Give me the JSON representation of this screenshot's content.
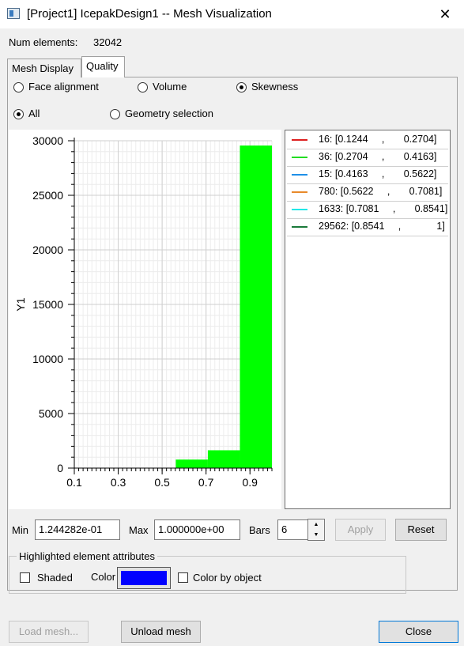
{
  "window": {
    "title": "[Project1] IcepakDesign1 -- Mesh Visualization",
    "close_glyph": "✕"
  },
  "summary": {
    "num_elements_label": "Num elements:",
    "num_elements_value": "32042"
  },
  "tabs": [
    {
      "label": "Mesh Display",
      "active": false
    },
    {
      "label": "Quality",
      "active": true
    }
  ],
  "quality": {
    "metric_options": [
      {
        "label": "Face alignment",
        "checked": false
      },
      {
        "label": "Volume",
        "checked": false
      },
      {
        "label": "Skewness",
        "checked": true
      }
    ],
    "scope_options": [
      {
        "label": "All",
        "checked": true
      },
      {
        "label": "Geometry selection",
        "checked": false
      }
    ]
  },
  "chart_data": {
    "type": "bar",
    "ylabel": "Y1",
    "xlabel": "",
    "x_ticks": [
      "0.1",
      "0.3",
      "0.5",
      "0.7",
      "0.9"
    ],
    "x_tick_values": [
      0.1,
      0.3,
      0.5,
      0.7,
      0.9
    ],
    "y_ticks": [
      "0",
      "5000",
      "10000",
      "15000",
      "20000",
      "25000",
      "30000"
    ],
    "y_tick_values": [
      0,
      5000,
      10000,
      15000,
      20000,
      25000,
      30000
    ],
    "xlim": [
      0.1,
      1.0
    ],
    "ylim": [
      0,
      30000
    ],
    "grid": true,
    "bars": [
      {
        "x0": 0.1244,
        "x1": 0.2704,
        "value": 16,
        "color": "#dd1f1f",
        "legend": "16: [0.1244     ,       0.2704]"
      },
      {
        "x0": 0.2704,
        "x1": 0.4163,
        "value": 36,
        "color": "#22dd22",
        "legend": "36: [0.2704     ,       0.4163]"
      },
      {
        "x0": 0.4163,
        "x1": 0.5622,
        "value": 15,
        "color": "#1e90e8",
        "legend": "15: [0.4163     ,       0.5622]"
      },
      {
        "x0": 0.5622,
        "x1": 0.7081,
        "value": 780,
        "color": "#e8892a",
        "legend": "780: [0.5622     ,       0.7081]"
      },
      {
        "x0": 0.7081,
        "x1": 0.8541,
        "value": 1633,
        "color": "#22e8e8",
        "legend": "1633: [0.7081     ,       0.8541]"
      },
      {
        "x0": 0.8541,
        "x1": 1.0,
        "value": 29562,
        "color": "#1a7a3a",
        "legend": "29562: [0.8541     ,             1]"
      }
    ],
    "bar_fill_color": "#00ff00"
  },
  "range": {
    "min_label": "Min",
    "min_value": "1.244282e-01",
    "max_label": "Max",
    "max_value": "1.000000e+00",
    "bars_label": "Bars",
    "bars_value": "6",
    "apply_label": "Apply",
    "reset_label": "Reset"
  },
  "highlight": {
    "group_title": "Highlighted element attributes",
    "shaded_label": "Shaded",
    "shaded_checked": false,
    "color_label": "Color",
    "color_value": "#0000ff",
    "color_by_object_label": "Color by object",
    "color_by_object_checked": false
  },
  "footer": {
    "load_mesh_label": "Load mesh...",
    "unload_mesh_label": "Unload mesh",
    "close_label": "Close"
  }
}
